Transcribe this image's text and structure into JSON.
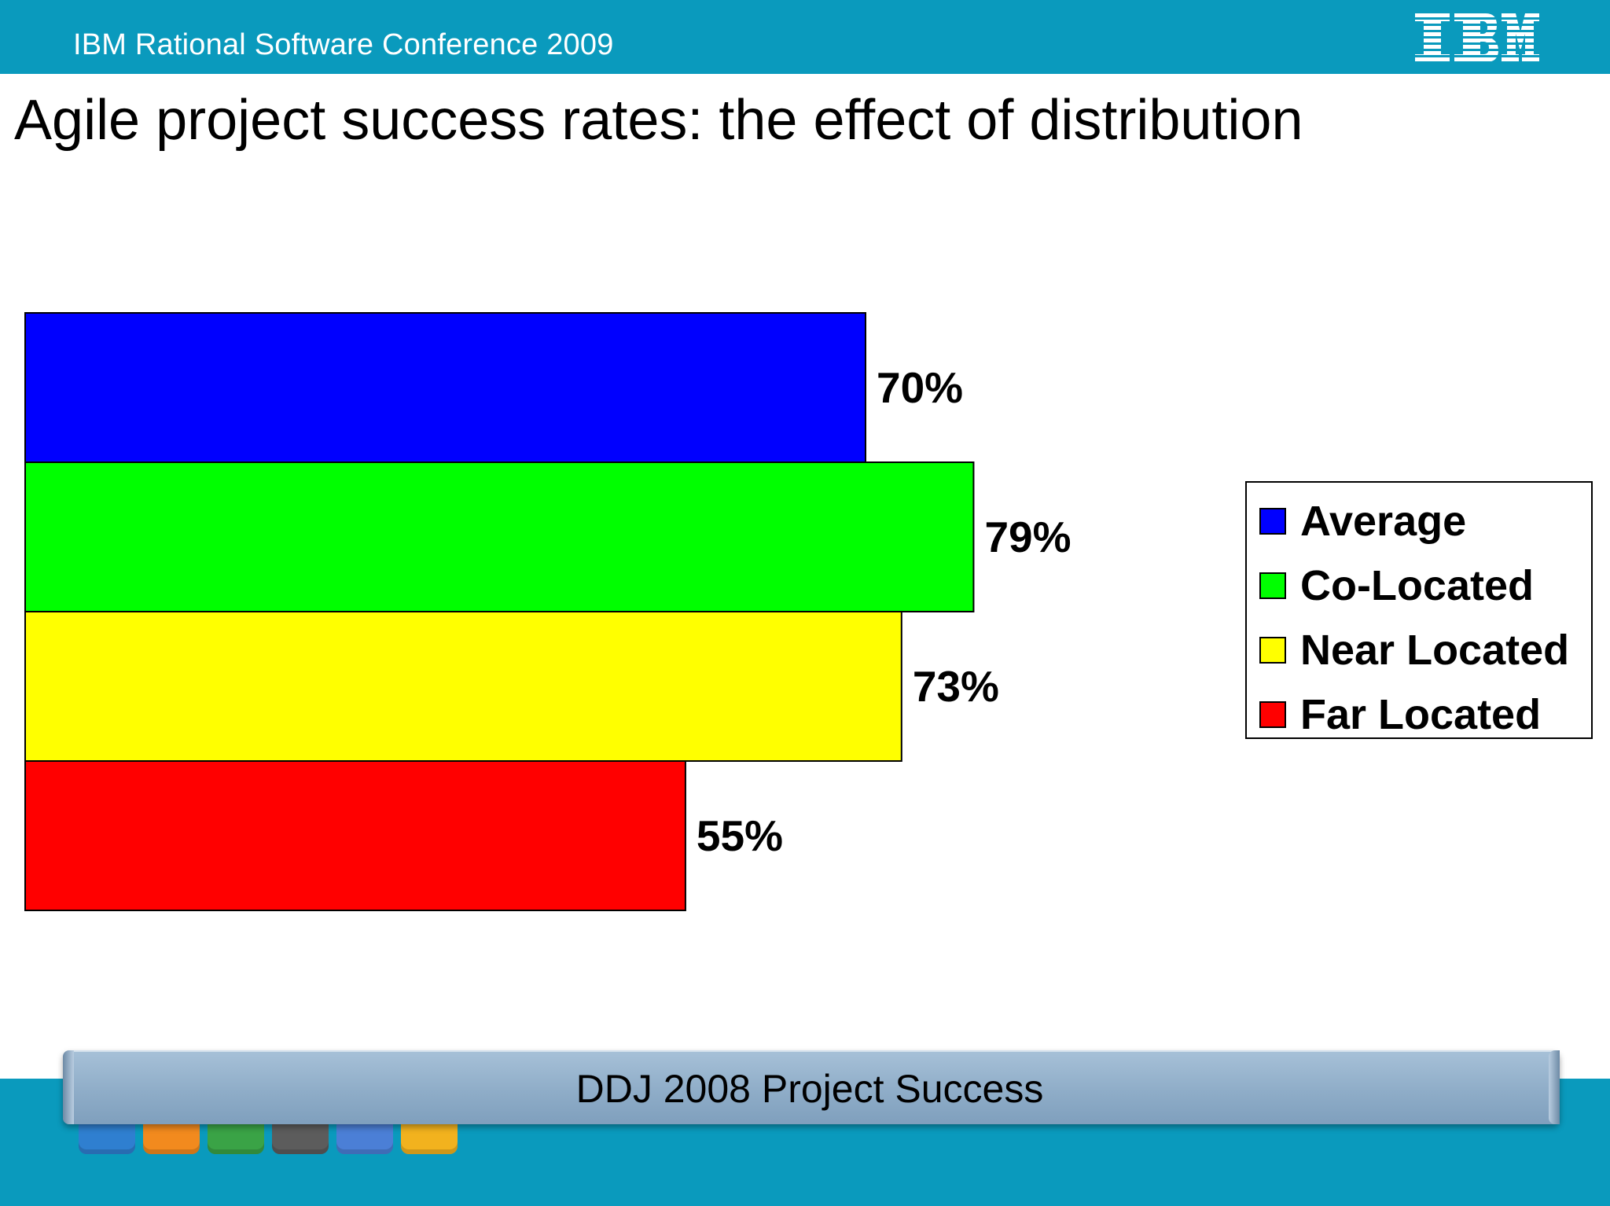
{
  "header": {
    "conference": "IBM Rational Software Conference 2009",
    "logo": "IBM"
  },
  "slide": {
    "title": "Agile project success rates: the effect of distribution"
  },
  "chart_data": {
    "type": "bar",
    "orientation": "horizontal",
    "title": "",
    "xlabel": "",
    "ylabel": "",
    "xlim": [
      0,
      100
    ],
    "grid": false,
    "legend_position": "right",
    "series": [
      {
        "name": "Average",
        "value": 70,
        "label": "70%",
        "color": "#0000ff"
      },
      {
        "name": "Co-Located",
        "value": 79,
        "label": "79%",
        "color": "#00ff00"
      },
      {
        "name": "Near Located",
        "value": 73,
        "label": "73%",
        "color": "#ffff00"
      },
      {
        "name": "Far Located",
        "value": 55,
        "label": "55%",
        "color": "#ff0000"
      }
    ]
  },
  "footer": {
    "source": "DDJ 2008 Project Success",
    "band_color": "#0a9abd",
    "app_icons": [
      {
        "name": "chart-app-icon",
        "color": "#2f7fd0"
      },
      {
        "name": "webcam-app-icon",
        "color": "#f28a1e"
      },
      {
        "name": "spreadsheet-app-icon",
        "color": "#3aa346"
      },
      {
        "name": "printer-app-icon",
        "color": "#5c5c5c"
      },
      {
        "name": "speaker-app-icon",
        "color": "#4b7fd6"
      },
      {
        "name": "tools-app-icon",
        "color": "#f2b21e"
      }
    ]
  }
}
